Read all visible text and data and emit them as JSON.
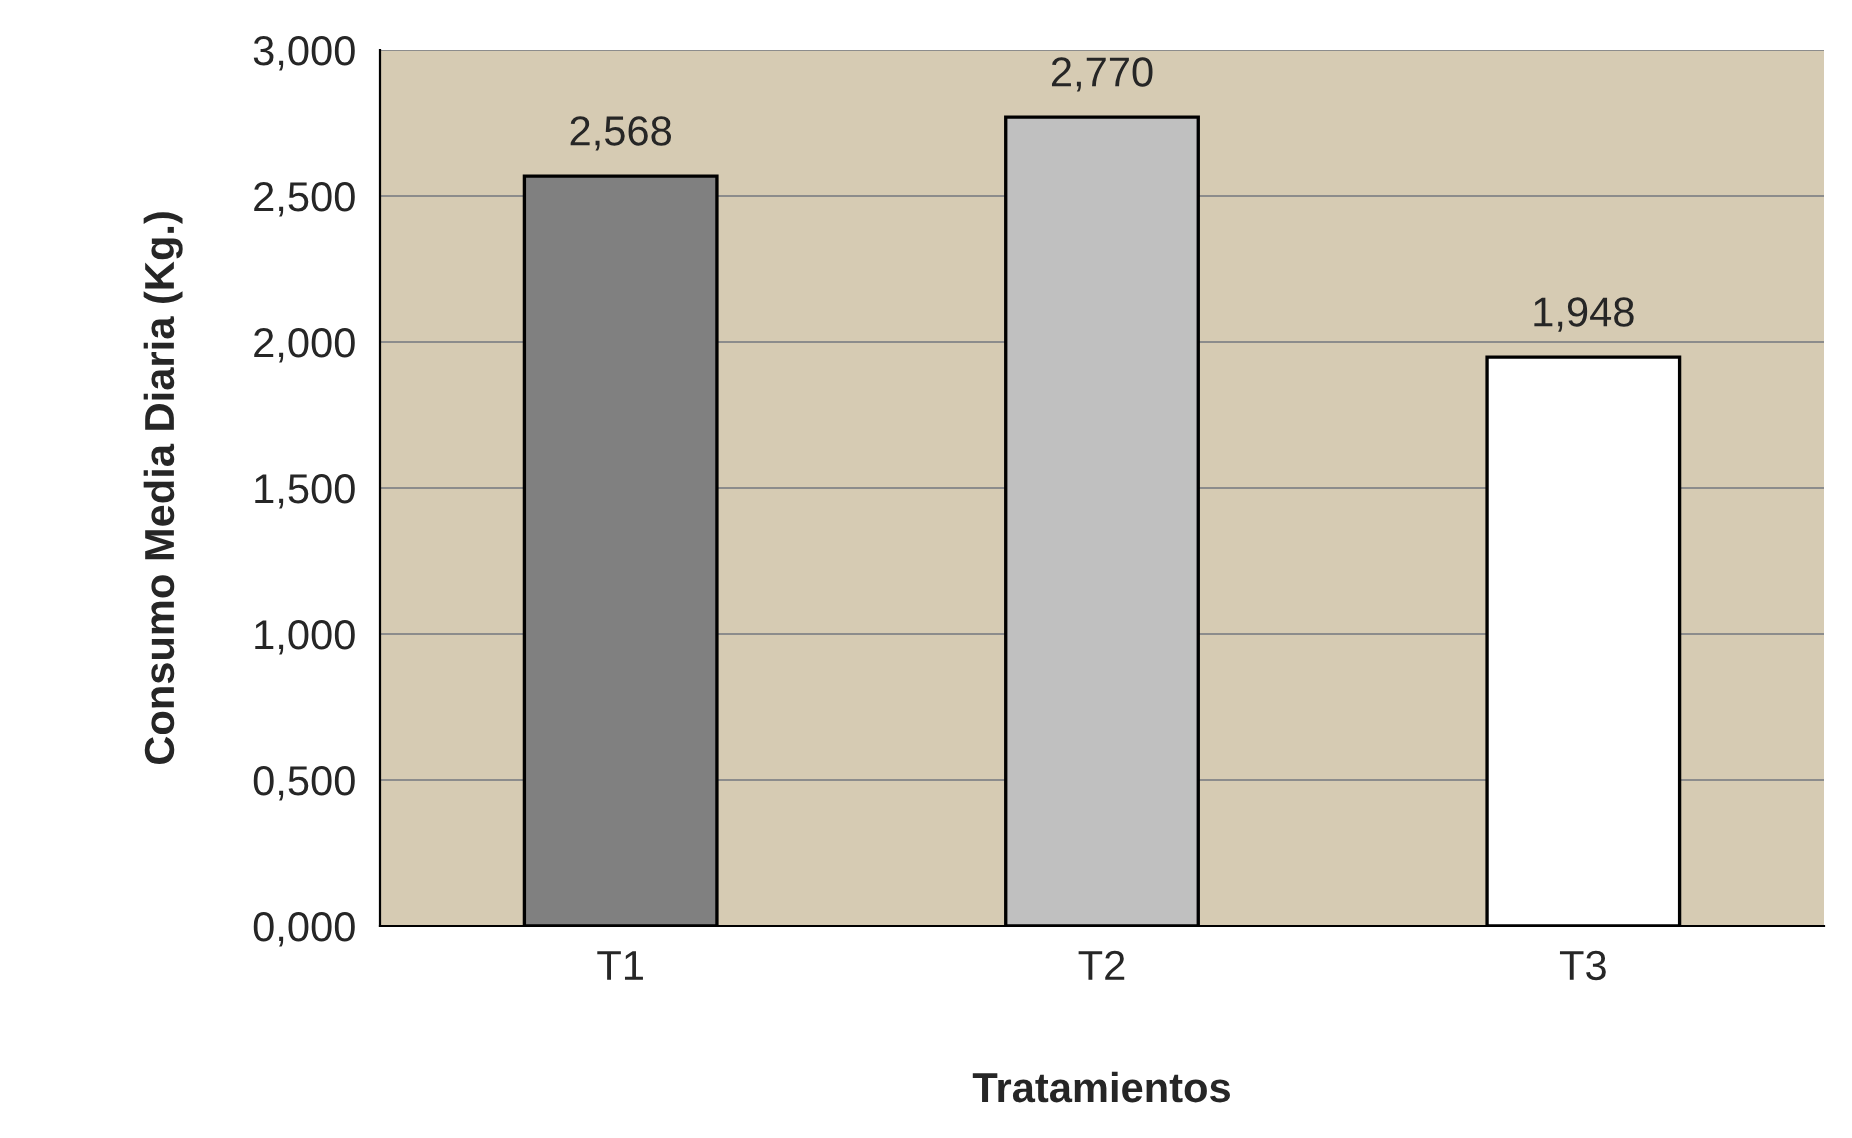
{
  "chart_data": {
    "type": "bar",
    "xlabel": "Tratamientos",
    "ylabel": "Consumo Media Diaria (Kg.)",
    "categories": [
      "T1",
      "T2",
      "T3"
    ],
    "values": [
      2.568,
      2.77,
      1.948
    ],
    "value_labels": [
      "2,568",
      "2,770",
      "1,948"
    ],
    "colors": [
      "#808080",
      "#c0c0c0",
      "#ffffff"
    ],
    "ylim": [
      0,
      3
    ],
    "yticks": [
      {
        "value": 0,
        "label": "0,000"
      },
      {
        "value": 0.5,
        "label": "0,500"
      },
      {
        "value": 1,
        "label": "1,000"
      },
      {
        "value": 1.5,
        "label": "1,500"
      },
      {
        "value": 2,
        "label": "2,000"
      },
      {
        "value": 2.5,
        "label": "2,500"
      },
      {
        "value": 3,
        "label": "3,000"
      }
    ],
    "grid": "y"
  }
}
